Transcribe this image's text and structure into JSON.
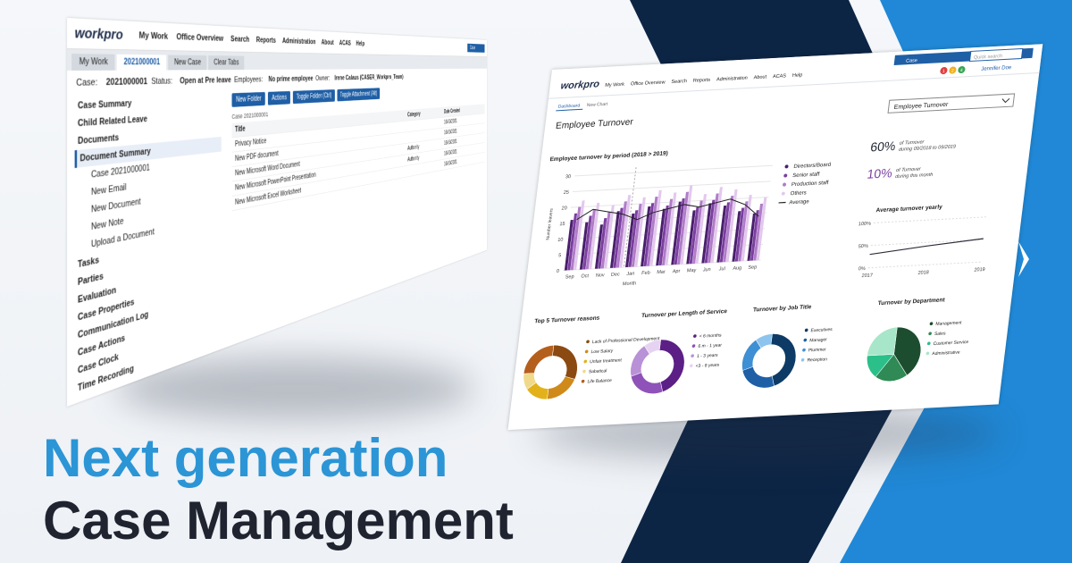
{
  "headline": {
    "line1": "Next generation",
    "line2": "Case Management"
  },
  "case_window": {
    "logo": "workpro",
    "nav": [
      "My Work",
      "Office Overview",
      "Search",
      "Reports",
      "Administration",
      "About",
      "ACAS",
      "Help"
    ],
    "search_scope": "Case",
    "tabs": [
      "My Work",
      "2021000001",
      "New Case",
      "Clear Tabs"
    ],
    "case_info": [
      {
        "label": "Case:",
        "value": "2021000001"
      },
      {
        "label": "Status:",
        "value": "Open at Pre leave"
      },
      {
        "label": "Employees:",
        "value": "No prime employee"
      },
      {
        "label": "Owner:",
        "value": "Irene Calaus (CASER_Workpro_Team)"
      }
    ],
    "sidebar": [
      "Case Summary",
      "Child Related Leave",
      "Documents",
      "Document Summary",
      "Case 2021000001",
      "New Email",
      "New Document",
      "New Note",
      "Upload a Document",
      "Tasks",
      "Parties",
      "Evaluation",
      "Case Properties",
      "Communication Log",
      "Case Actions",
      "Case Clock",
      "Time Recording"
    ],
    "toolbar": [
      "New Folder",
      "Actions",
      "Toggle Folder (Ctrl)",
      "Toggle Attachment (Alt)"
    ],
    "folder": "Case 2021000001",
    "columns": [
      "Title",
      "Category",
      "Date Created"
    ],
    "rows": [
      {
        "title": "Privacy Notice",
        "date": "16/03/2021"
      },
      {
        "title": "New PDF document",
        "date": "16/03/2021"
      },
      {
        "title": "New Microsoft Word Document",
        "category": "Authority",
        "date": "16/03/2021"
      },
      {
        "title": "New Microsoft PowerPoint Presentation",
        "category": "Authority",
        "date": "16/03/2021"
      },
      {
        "title": "New Microsoft Excel Worksheet",
        "date": "16/03/2021"
      }
    ]
  },
  "dashboard": {
    "logo": "workpro",
    "nav": [
      "My Work",
      "Office Overview",
      "Search",
      "Reports",
      "Administration",
      "About",
      "ACAS",
      "Help"
    ],
    "search_scope": "Case",
    "search_placeholder": "Quick search",
    "badges": [
      1,
      2,
      4
    ],
    "user": "Jennifer Doe",
    "tabs": [
      "Dashboard",
      "New Chart"
    ],
    "title": "Employee Turnover",
    "selector": "Employee Turnover",
    "turnover_chart": {
      "type": "bar",
      "title": "Employee turnover by period (2018 > 2019)",
      "y_label": "Number leavers",
      "x_label": "Month",
      "categories": [
        "Sep",
        "Oct",
        "Nov",
        "Dec",
        "Jan",
        "Feb",
        "Mar",
        "Apr",
        "May",
        "Jun",
        "Jul",
        "Aug",
        "Sep"
      ],
      "series": [
        {
          "name": "Directors/Board",
          "color": "#4a1f6e",
          "values": [
            16,
            15,
            14,
            18,
            17,
            19,
            18,
            20,
            17,
            19,
            18,
            16,
            15
          ]
        },
        {
          "name": "Senior staff",
          "color": "#7b3fa0",
          "values": [
            18,
            17,
            16,
            19,
            18,
            20,
            19,
            21,
            18,
            20,
            19,
            17,
            16
          ]
        },
        {
          "name": "Production staff",
          "color": "#b07cc8",
          "values": [
            20,
            19,
            18,
            21,
            20,
            22,
            21,
            23,
            20,
            22,
            21,
            19,
            18
          ]
        },
        {
          "name": "Others",
          "color": "#e3c8ee",
          "values": [
            22,
            21,
            20,
            23,
            22,
            24,
            23,
            25,
            22,
            24,
            23,
            21,
            20
          ]
        },
        {
          "name": "Average",
          "type": "line",
          "color": "#222222",
          "values": [
            16,
            19,
            18,
            17,
            15,
            17,
            18,
            19,
            18,
            19,
            20,
            18,
            14
          ]
        }
      ],
      "ylim": [
        0,
        30
      ],
      "yticks": [
        0,
        5,
        10,
        15,
        20,
        25,
        30
      ]
    },
    "stats": [
      {
        "value": "60%",
        "color": "#1f2633",
        "text": "of Turnover",
        "period": "during 09/2018 to 09/2019"
      },
      {
        "value": "10%",
        "color": "#7b3fa0",
        "text": "of Turnover",
        "period": "during this month"
      }
    ],
    "yearly_chart": {
      "type": "line",
      "title": "Average turnover yearly",
      "categories": [
        "2017",
        "2018",
        "2019"
      ],
      "values": [
        30,
        42,
        52
      ],
      "color": "#2b2b3a",
      "ylim": [
        0,
        100
      ],
      "yticks": [
        {
          "value": 0,
          "label": "0%"
        },
        {
          "value": 50,
          "label": "50%"
        },
        {
          "value": 100,
          "label": "100%"
        }
      ]
    },
    "donuts": [
      {
        "type": "donut",
        "title": "Top 5 Turnover reasons",
        "labels": [
          "Lack of Professional Development",
          "Low Salary",
          "Unfair treatment",
          "Sabatical",
          "Life Balance"
        ],
        "values": [
          30,
          20,
          15,
          10,
          25
        ],
        "colors": [
          "#8a4a12",
          "#d08a1a",
          "#e3b21a",
          "#f0d98a",
          "#b55f1c"
        ]
      },
      {
        "type": "donut",
        "title": "Turnover per Length of Service",
        "labels": [
          "< 6 months",
          "6 m - 1 year",
          "1 - 3 years",
          "<3 - 8 years"
        ],
        "values": [
          45,
          25,
          20,
          10
        ],
        "colors": [
          "#5b1f86",
          "#8e52b8",
          "#b991d6",
          "#e6d3f2"
        ]
      },
      {
        "type": "donut",
        "title": "Turnover by Job Title",
        "labels": [
          "Executives",
          "Manager",
          "Plummer",
          "Reception"
        ],
        "values": [
          45,
          25,
          20,
          10
        ],
        "colors": [
          "#0d3b66",
          "#1f5fa6",
          "#3e8fd3",
          "#8cc4ee"
        ]
      },
      {
        "type": "pie",
        "title": "Turnover by Department",
        "labels": [
          "Management",
          "Sales",
          "Customer Service",
          "Administrative"
        ],
        "values": [
          40,
          20,
          15,
          25
        ],
        "colors": [
          "#1b4d2e",
          "#2f8a55",
          "#2bbf8a",
          "#a8e6c9"
        ]
      }
    ]
  }
}
